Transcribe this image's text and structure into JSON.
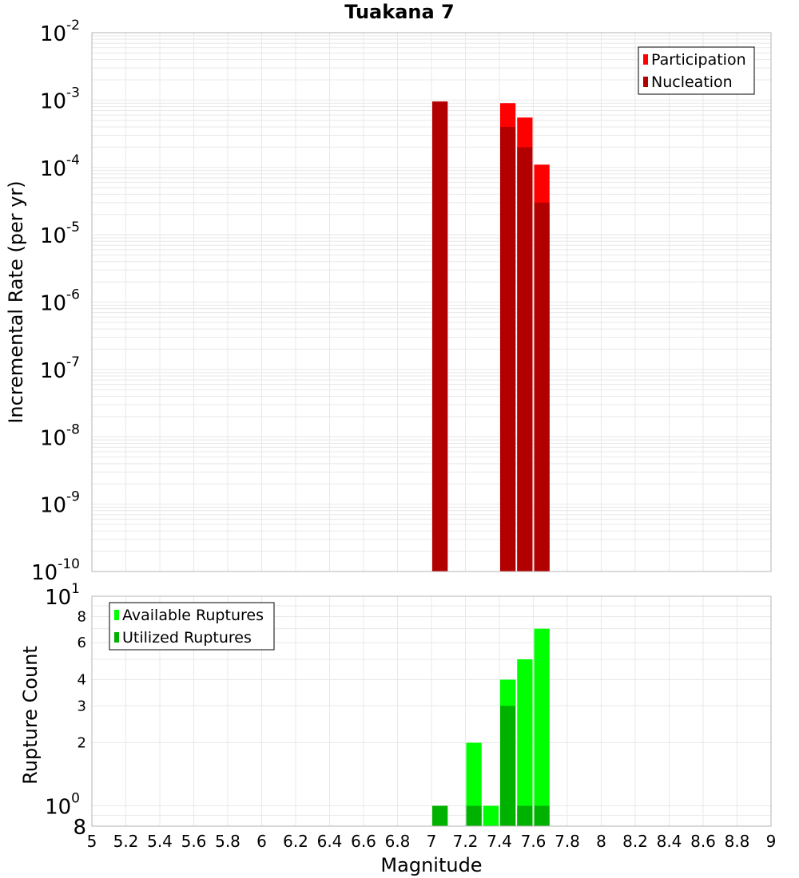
{
  "chart_data": [
    {
      "type": "bar",
      "title": "Tuakana 7",
      "ylabel": "Incremental Rate (per yr)",
      "xlabel": "",
      "y_scale": "log",
      "ylim": [
        1e-10,
        0.01
      ],
      "xlim": [
        5,
        9
      ],
      "grid": true,
      "legend_position": "top-right",
      "y_tick_labels": [
        {
          "base": "10",
          "exp": "-2"
        },
        {
          "base": "10",
          "exp": "-3"
        },
        {
          "base": "10",
          "exp": "-4"
        },
        {
          "base": "10",
          "exp": "-5"
        },
        {
          "base": "10",
          "exp": "-6"
        },
        {
          "base": "10",
          "exp": "-7"
        },
        {
          "base": "10",
          "exp": "-8"
        },
        {
          "base": "10",
          "exp": "-9"
        },
        {
          "base": "10",
          "exp": "-10"
        }
      ],
      "series": [
        {
          "name": "Participation",
          "color": "#ff0000",
          "x": [
            7.05,
            7.45,
            7.55,
            7.65
          ],
          "values": [
            0.00095,
            0.0009,
            0.00055,
            0.00011
          ]
        },
        {
          "name": "Nucleation",
          "color": "#b20000",
          "x": [
            7.05,
            7.45,
            7.55,
            7.65
          ],
          "values": [
            0.00095,
            0.0004,
            0.0002,
            3e-05
          ]
        }
      ]
    },
    {
      "type": "bar",
      "title": "",
      "ylabel": "Rupture Count",
      "xlabel": "Magnitude",
      "y_scale": "log",
      "ylim": [
        0.8,
        10
      ],
      "xlim": [
        5,
        9
      ],
      "grid": true,
      "legend_position": "top-left",
      "x_tick_labels": [
        "5",
        "5.2",
        "5.4",
        "5.6",
        "5.8",
        "6",
        "6.2",
        "6.4",
        "6.6",
        "6.8",
        "7",
        "7.2",
        "7.4",
        "7.6",
        "7.8",
        "8",
        "8.2",
        "8.4",
        "8.6",
        "8.8",
        "9"
      ],
      "y_tick_labels": [
        {
          "label": "8",
          "value": 8
        },
        {
          "label": "6",
          "value": 6
        },
        {
          "label": "4",
          "value": 4
        },
        {
          "label": "3",
          "value": 3
        },
        {
          "label": "2",
          "value": 2
        }
      ],
      "y_major_labels": [
        {
          "base": "10",
          "exp": "1"
        },
        {
          "base": "10",
          "exp": "0"
        }
      ],
      "y_bottom_label": "8",
      "series": [
        {
          "name": "Available Ruptures",
          "color": "#00ff00",
          "x": [
            7.05,
            7.25,
            7.35,
            7.45,
            7.55,
            7.65
          ],
          "values": [
            1,
            2,
            1,
            4,
            5,
            7
          ]
        },
        {
          "name": "Utilized Ruptures",
          "color": "#00b200",
          "x": [
            7.05,
            7.25,
            7.35,
            7.45,
            7.55,
            7.65
          ],
          "values": [
            1,
            1,
            0,
            3,
            1,
            1
          ]
        }
      ]
    }
  ]
}
